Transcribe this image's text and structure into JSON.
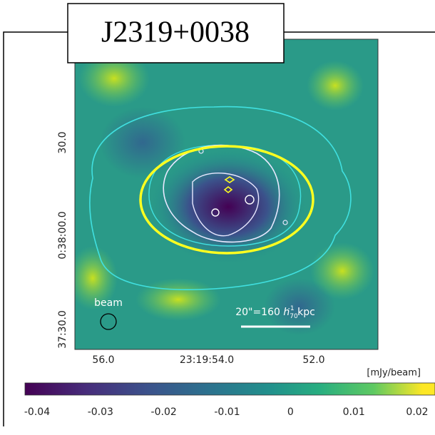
{
  "title": "J2319+0038",
  "y_ticks": [
    "30.0",
    "0:38:00.0",
    "37:30.0"
  ],
  "x_ticks": [
    "56.0",
    "23:19:54.0",
    "52.0"
  ],
  "beam_label": "beam",
  "scale_bar": {
    "text": "20\"=160 ",
    "symbol": "h",
    "subscript": "70",
    "superscript": "-1",
    "unit": " kpc"
  },
  "colorbar": {
    "unit": "[mJy/beam]",
    "ticks": [
      -0.04,
      -0.03,
      -0.02,
      -0.01,
      0,
      0.01,
      0.02
    ]
  }
}
